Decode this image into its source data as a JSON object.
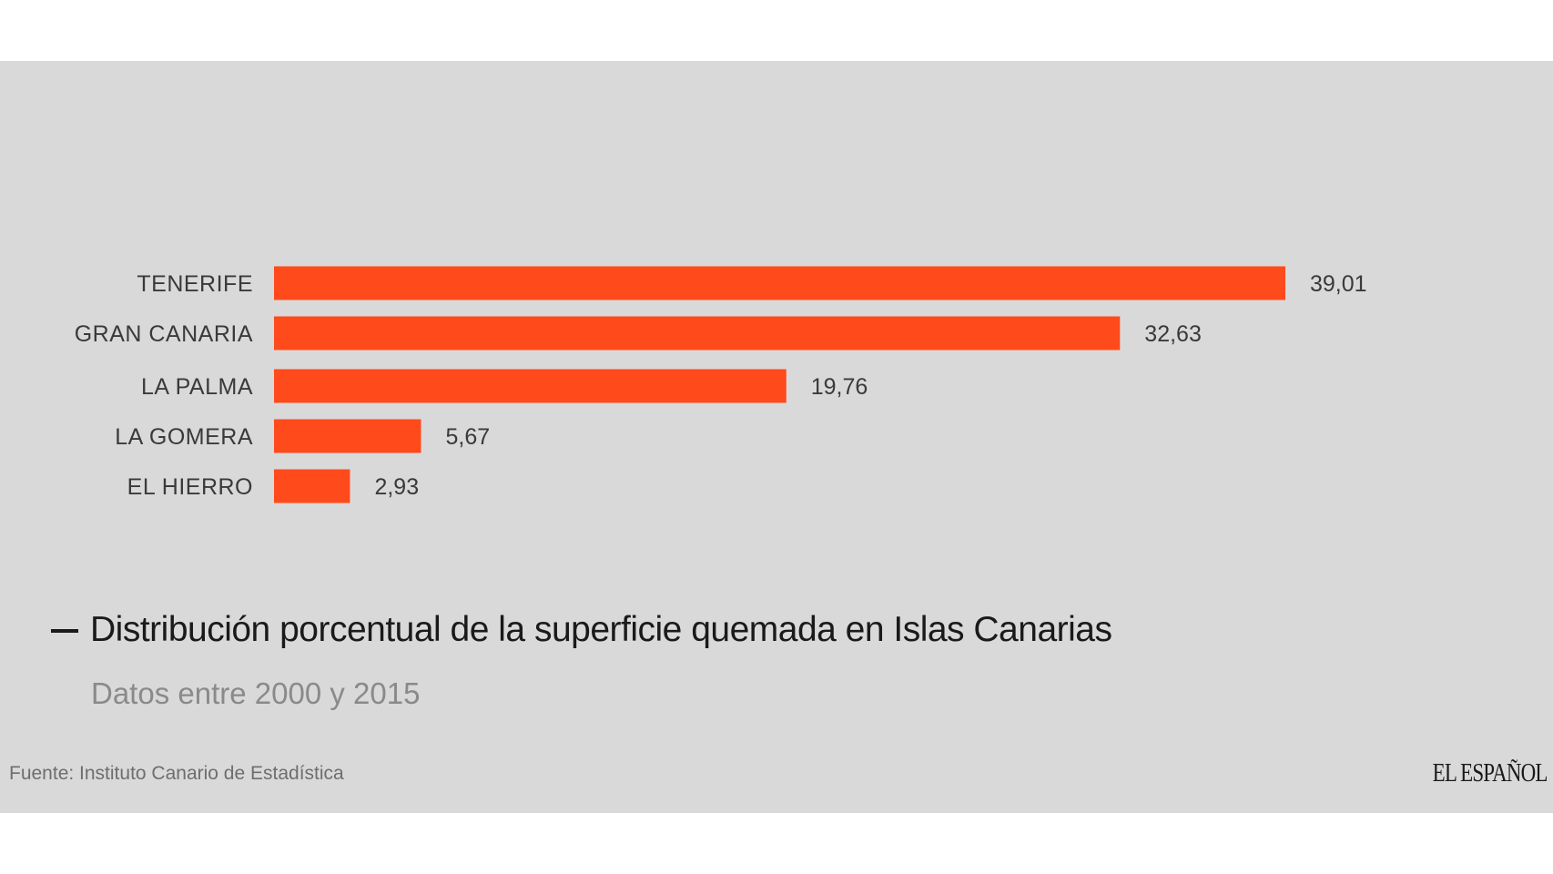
{
  "chart_data": {
    "type": "bar",
    "orientation": "horizontal",
    "categories": [
      "TENERIFE",
      "GRAN CANARIA",
      "LA PALMA",
      "LA GOMERA",
      "EL HIERRO"
    ],
    "values": [
      39.01,
      32.63,
      19.76,
      5.67,
      2.93
    ],
    "value_labels": [
      "39,01",
      "32,63",
      "19,76",
      "5,67",
      "2,93"
    ],
    "title": "Distribución porcentual de la superficie quemada en Islas Canarias",
    "subtitle": "Datos entre 2000 y 2015",
    "xlabel": "",
    "ylabel": "",
    "xlim": [
      0,
      39.01
    ],
    "grid": false,
    "legend": "none",
    "bar_color": "#ff4a1c"
  },
  "footer": {
    "source": "Fuente: Instituto Canario de Estadística",
    "brand": "EL ESPAÑOL"
  },
  "colors": {
    "panel_background": "#d9d9d9",
    "bar": "#ff4a1c",
    "title": "#1a1a1a",
    "subtitle": "#8a8a8a"
  }
}
